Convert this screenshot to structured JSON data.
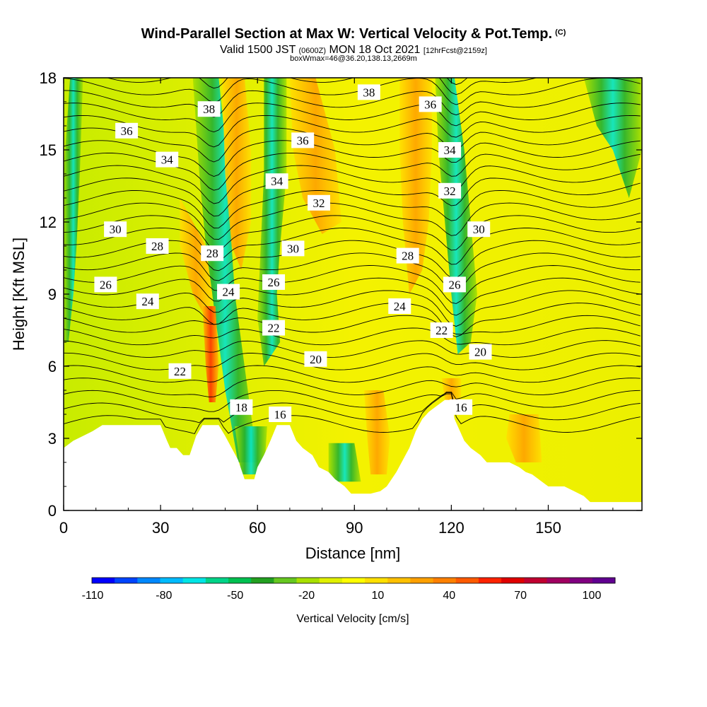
{
  "header": {
    "title": "Wind-Parallel Section at Max W: Vertical Velocity & Pot.Temp.",
    "title_mark": "(C)",
    "subtitle_a": "Valid 1500 JST",
    "subtitle_b": "(0600Z)",
    "subtitle_c": "MON 18 Oct 2021",
    "subtitle_d": "[12hrFcst@2159z]",
    "boxline": "boxWmax=46@36.20,138.13,2669m"
  },
  "chart_data": {
    "type": "heatmap",
    "xlabel": "Distance [nm]",
    "ylabel": "Height [Kft MSL]",
    "xlim": [
      0,
      179
    ],
    "ylim": [
      0,
      18
    ],
    "x_ticks": [
      0,
      30,
      60,
      90,
      120,
      150
    ],
    "y_ticks": [
      0,
      3,
      6,
      9,
      12,
      15,
      18
    ],
    "colorbar": {
      "label": "Vertical Velocity [cm/s]",
      "tick_labels": [
        "-110",
        "-80",
        "-50",
        "-20",
        "10",
        "40",
        "70",
        "100"
      ],
      "colors": [
        "#0000ff",
        "#0044ff",
        "#0088ff",
        "#00bbff",
        "#00e5e5",
        "#00d488",
        "#00c050",
        "#22a020",
        "#66c820",
        "#a8e000",
        "#e0f000",
        "#ffff00",
        "#ffe000",
        "#ffc000",
        "#ffa000",
        "#ff8000",
        "#ff5a00",
        "#ff2200",
        "#e00000",
        "#c00030",
        "#a00060",
        "#800080",
        "#600090"
      ]
    },
    "theta_labels": [
      {
        "v": "36",
        "x": 19.5,
        "y": 15.8
      },
      {
        "v": "38",
        "x": 45,
        "y": 16.7
      },
      {
        "v": "38",
        "x": 94.5,
        "y": 17.4
      },
      {
        "v": "36",
        "x": 113.5,
        "y": 16.9
      },
      {
        "v": "36",
        "x": 74,
        "y": 15.4
      },
      {
        "v": "34",
        "x": 32,
        "y": 14.6
      },
      {
        "v": "34",
        "x": 119.5,
        "y": 15.0
      },
      {
        "v": "34",
        "x": 66,
        "y": 13.7
      },
      {
        "v": "32",
        "x": 119.5,
        "y": 13.3
      },
      {
        "v": "32",
        "x": 79,
        "y": 12.8
      },
      {
        "v": "30",
        "x": 16,
        "y": 11.7
      },
      {
        "v": "28",
        "x": 29,
        "y": 11.0
      },
      {
        "v": "28",
        "x": 46,
        "y": 10.7
      },
      {
        "v": "30",
        "x": 71,
        "y": 10.9
      },
      {
        "v": "30",
        "x": 128.5,
        "y": 11.7
      },
      {
        "v": "28",
        "x": 106.5,
        "y": 10.6
      },
      {
        "v": "26",
        "x": 13,
        "y": 9.4
      },
      {
        "v": "24",
        "x": 26,
        "y": 8.7
      },
      {
        "v": "24",
        "x": 51,
        "y": 9.1
      },
      {
        "v": "26",
        "x": 65,
        "y": 9.5
      },
      {
        "v": "26",
        "x": 121,
        "y": 9.4
      },
      {
        "v": "24",
        "x": 104,
        "y": 8.5
      },
      {
        "v": "22",
        "x": 65,
        "y": 7.6
      },
      {
        "v": "22",
        "x": 117,
        "y": 7.5
      },
      {
        "v": "20",
        "x": 129,
        "y": 6.6
      },
      {
        "v": "20",
        "x": 78,
        "y": 6.3
      },
      {
        "v": "22",
        "x": 36,
        "y": 5.8
      },
      {
        "v": "18",
        "x": 55,
        "y": 4.3
      },
      {
        "v": "16",
        "x": 67,
        "y": 4.0
      },
      {
        "v": "16",
        "x": 123,
        "y": 4.3
      }
    ],
    "terrain": [
      [
        0,
        2.6
      ],
      [
        3,
        2.9
      ],
      [
        6,
        3.1
      ],
      [
        9,
        3.3
      ],
      [
        12,
        3.55
      ],
      [
        18,
        3.55
      ],
      [
        30,
        3.55
      ],
      [
        32,
        2.9
      ],
      [
        33,
        2.6
      ],
      [
        35,
        2.6
      ],
      [
        37,
        2.3
      ],
      [
        39,
        2.3
      ],
      [
        41,
        3.1
      ],
      [
        43,
        3.55
      ],
      [
        48,
        3.55
      ],
      [
        50,
        3.1
      ],
      [
        52,
        2.6
      ],
      [
        54,
        2.1
      ],
      [
        56,
        1.3
      ],
      [
        59,
        1.3
      ],
      [
        60,
        1.8
      ],
      [
        62,
        2.3
      ],
      [
        64,
        2.9
      ],
      [
        66,
        3.55
      ],
      [
        70,
        3.55
      ],
      [
        72,
        2.9
      ],
      [
        74,
        2.6
      ],
      [
        77,
        2.3
      ],
      [
        79,
        1.8
      ],
      [
        82,
        1.6
      ],
      [
        84,
        1.3
      ],
      [
        87,
        1.0
      ],
      [
        89,
        0.7
      ],
      [
        92,
        0.7
      ],
      [
        95,
        0.7
      ],
      [
        98,
        0.8
      ],
      [
        100,
        1.0
      ],
      [
        103,
        1.6
      ],
      [
        105,
        2.1
      ],
      [
        107,
        2.6
      ],
      [
        109,
        3.3
      ],
      [
        111,
        3.8
      ],
      [
        113,
        4.1
      ],
      [
        115,
        4.3
      ],
      [
        118,
        4.6
      ],
      [
        120,
        4.6
      ],
      [
        121,
        3.8
      ],
      [
        124,
        2.9
      ],
      [
        126,
        2.6
      ],
      [
        129,
        2.3
      ],
      [
        131,
        2.0
      ],
      [
        138,
        2.0
      ],
      [
        141,
        1.8
      ],
      [
        143,
        1.6
      ],
      [
        145,
        1.5
      ],
      [
        147,
        1.3
      ],
      [
        150,
        1.0
      ],
      [
        155,
        1.0
      ],
      [
        158,
        0.8
      ],
      [
        161,
        0.6
      ],
      [
        163,
        0.35
      ],
      [
        179,
        0.35
      ]
    ]
  }
}
